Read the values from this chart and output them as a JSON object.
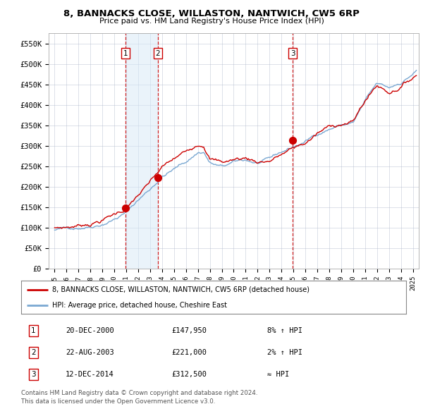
{
  "title1": "8, BANNACKS CLOSE, WILLASTON, NANTWICH, CW5 6RP",
  "title2": "Price paid vs. HM Land Registry's House Price Index (HPI)",
  "legend_line1": "8, BANNACKS CLOSE, WILLASTON, NANTWICH, CW5 6RP (detached house)",
  "legend_line2": "HPI: Average price, detached house, Cheshire East",
  "footer1": "Contains HM Land Registry data © Crown copyright and database right 2024.",
  "footer2": "This data is licensed under the Open Government Licence v3.0.",
  "transactions": [
    {
      "num": 1,
      "date": "20-DEC-2000",
      "price": 147950,
      "pct": "8% ↑ HPI",
      "x_year": 2000.96
    },
    {
      "num": 2,
      "date": "22-AUG-2003",
      "price": 221000,
      "pct": "2% ↑ HPI",
      "x_year": 2003.64
    },
    {
      "num": 3,
      "date": "12-DEC-2014",
      "price": 312500,
      "pct": "≈ HPI",
      "x_year": 2014.95
    }
  ],
  "ylabel_ticks": [
    "£0",
    "£50K",
    "£100K",
    "£150K",
    "£200K",
    "£250K",
    "£300K",
    "£350K",
    "£400K",
    "£450K",
    "£500K",
    "£550K"
  ],
  "ytick_values": [
    0,
    50000,
    100000,
    150000,
    200000,
    250000,
    300000,
    350000,
    400000,
    450000,
    500000,
    550000
  ],
  "xmin": 1994.5,
  "xmax": 2025.5,
  "ymin": 0,
  "ymax": 575000,
  "line_color_red": "#cc0000",
  "line_color_blue": "#7aa8d2",
  "dot_color": "#cc0000",
  "shade_color": "#d6e8f7",
  "vline_color": "#cc0000",
  "grid_color": "#b0b8cc",
  "bg_color": "#ffffff"
}
